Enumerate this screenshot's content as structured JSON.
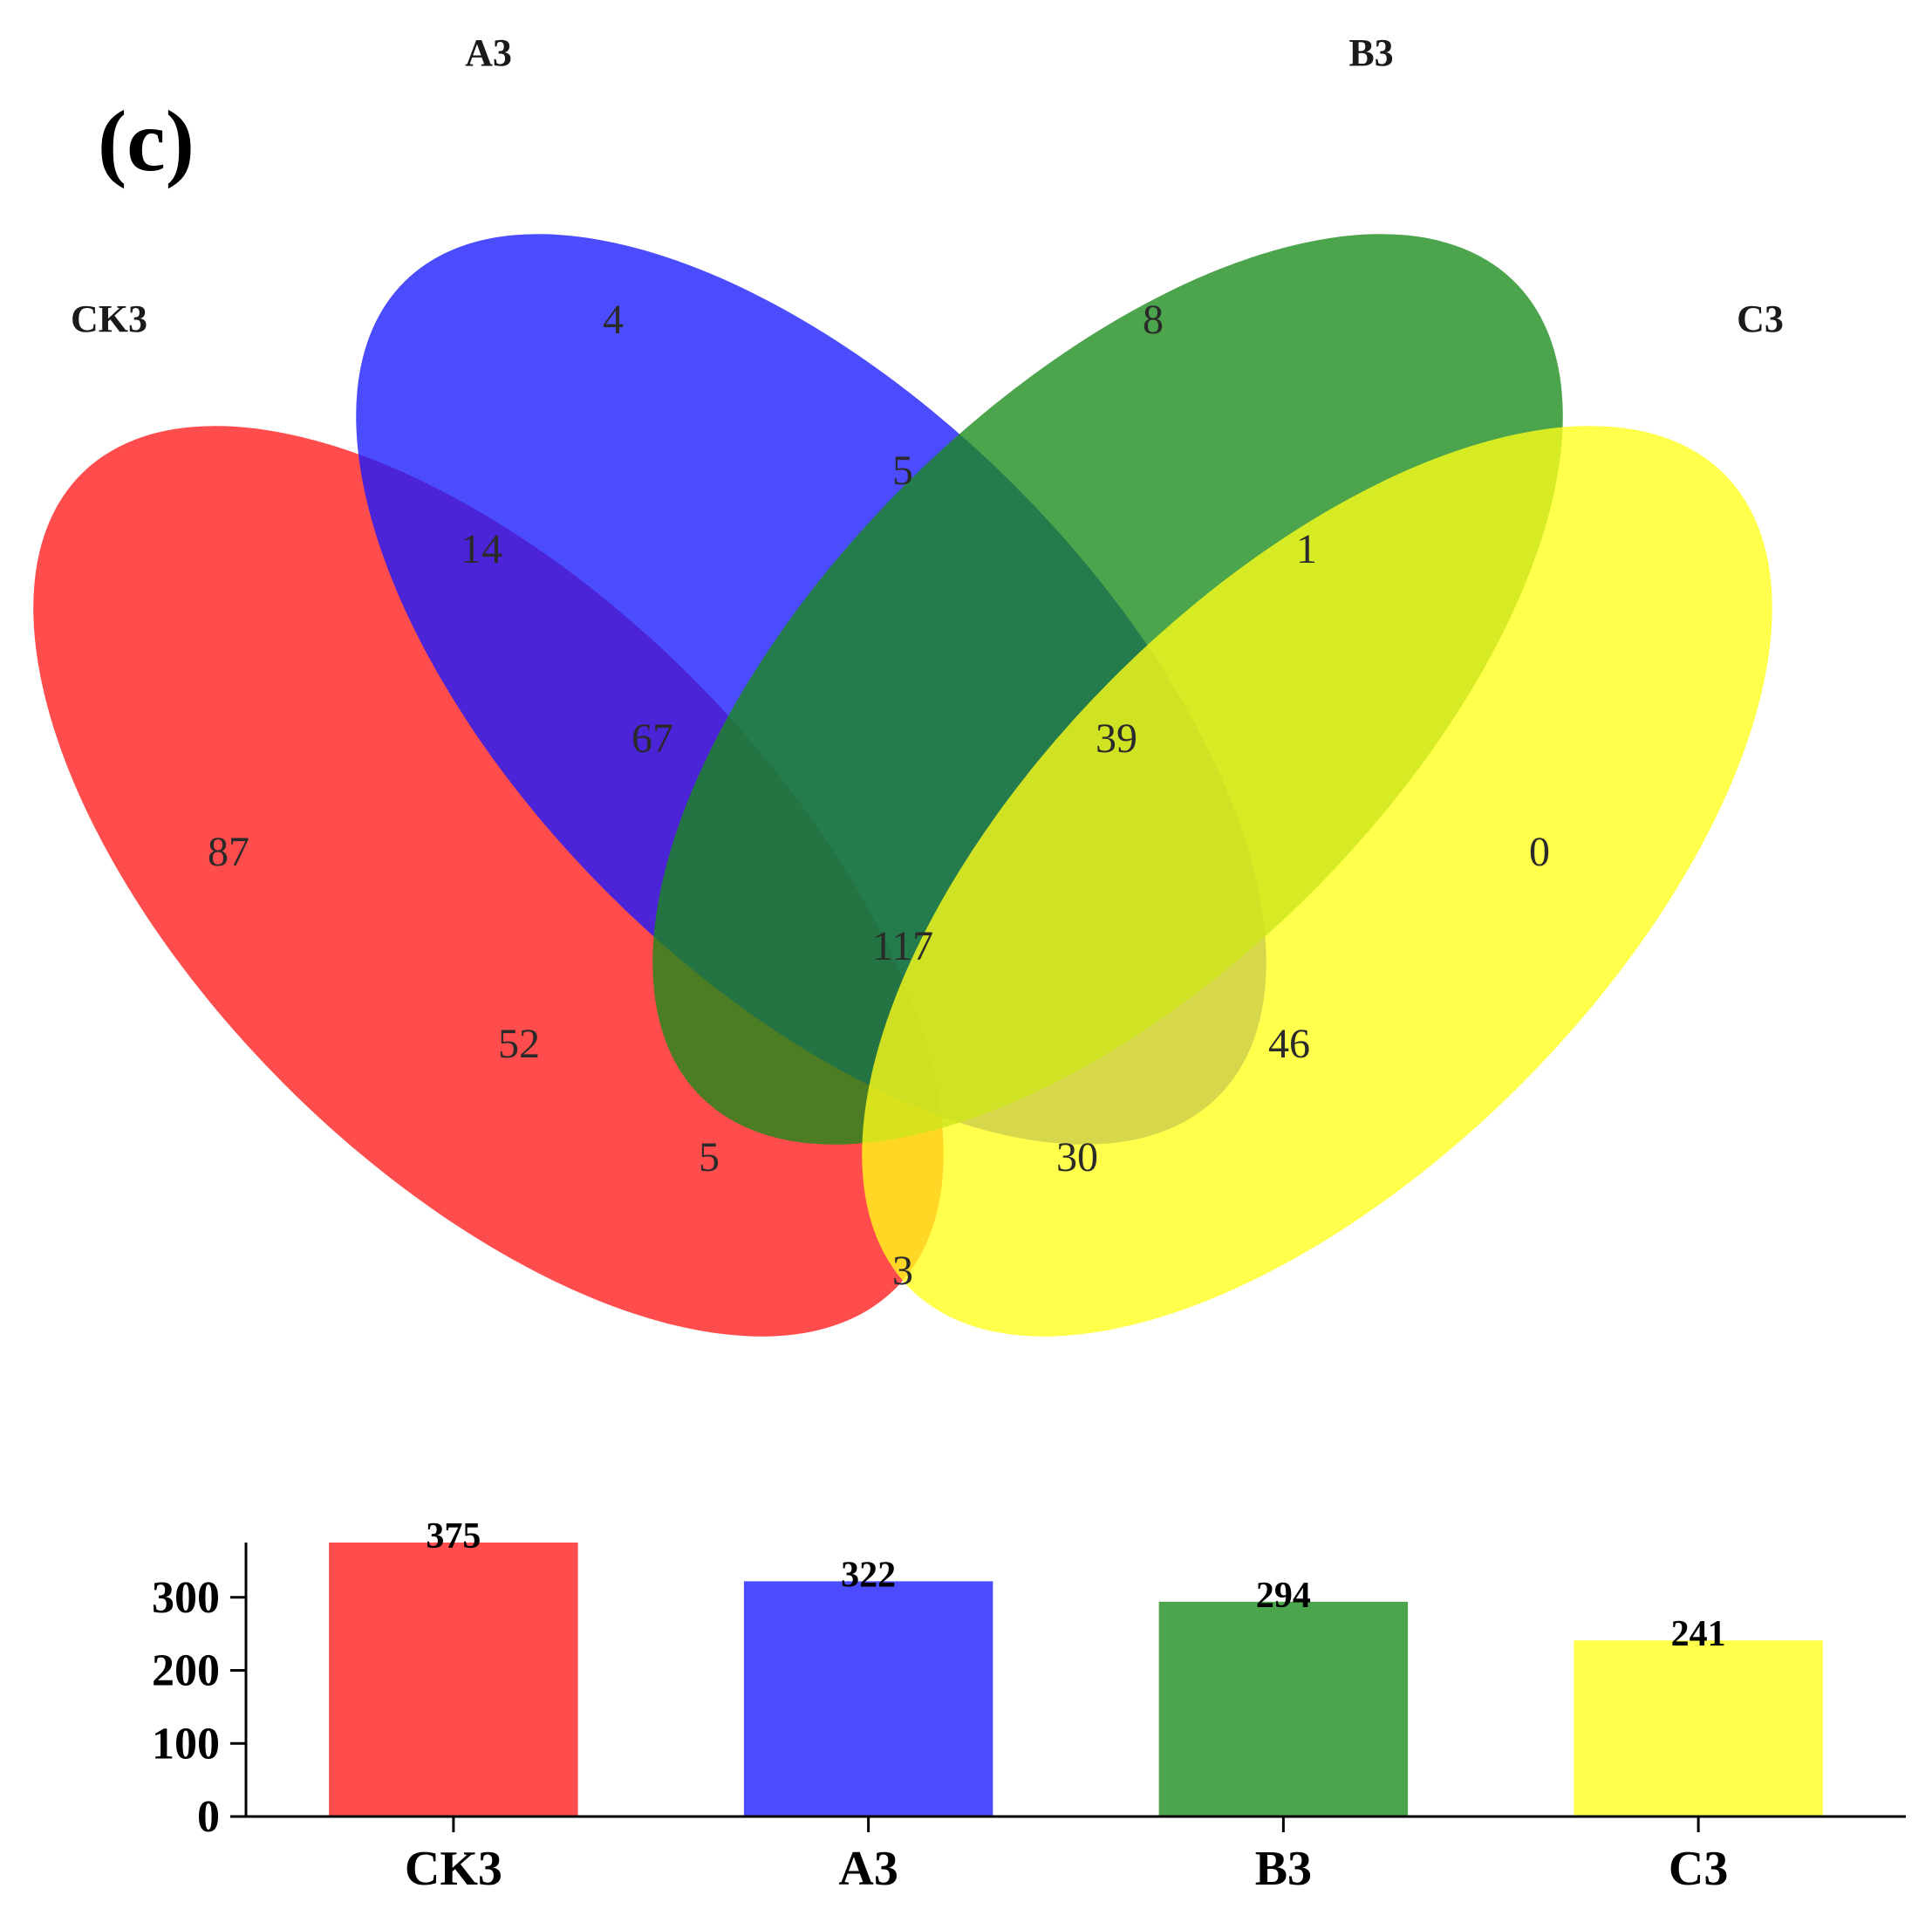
{
  "panel_label": "(c)",
  "colors": {
    "CK3": "#ff1a1a",
    "A3": "#1a1aff",
    "B3": "#1a8a1a",
    "C3": "#ffff1a"
  },
  "venn": {
    "set_labels": [
      "CK3",
      "A3",
      "B3",
      "C3"
    ],
    "regions": [
      {
        "sets": "CK3",
        "count": "87"
      },
      {
        "sets": "A3",
        "count": "4"
      },
      {
        "sets": "B3",
        "count": "8"
      },
      {
        "sets": "C3",
        "count": "0"
      },
      {
        "sets": "CK3&A3",
        "count": "14"
      },
      {
        "sets": "A3&B3",
        "count": "5"
      },
      {
        "sets": "B3&C3",
        "count": "1"
      },
      {
        "sets": "CK3&A3&B3",
        "count": "67"
      },
      {
        "sets": "A3&B3&C3",
        "count": "39"
      },
      {
        "sets": "CK3&A3&B3&C3",
        "count": "117"
      },
      {
        "sets": "CK3&B3",
        "count": "52"
      },
      {
        "sets": "A3&C3",
        "count": "46"
      },
      {
        "sets": "CK3&B3&C3",
        "count": "5"
      },
      {
        "sets": "CK3&A3&C3",
        "count": "30"
      },
      {
        "sets": "CK3&C3",
        "count": "3"
      }
    ]
  },
  "chart_data": {
    "type": "bar",
    "categories": [
      "CK3",
      "A3",
      "B3",
      "C3"
    ],
    "values": [
      375,
      322,
      294,
      241
    ],
    "value_labels": [
      "375",
      "322",
      "294",
      "241"
    ],
    "yticks": [
      "0",
      "100",
      "200",
      "300"
    ],
    "ylim": [
      0,
      375
    ],
    "xlabel": "",
    "ylabel": "",
    "grid": false
  }
}
